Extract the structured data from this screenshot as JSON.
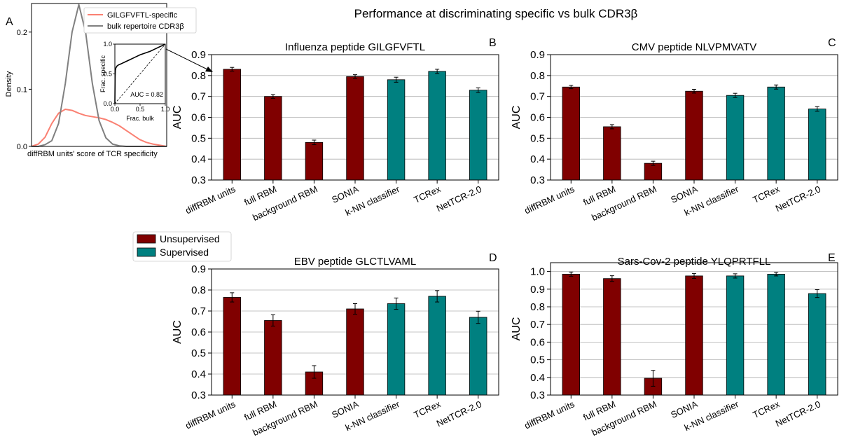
{
  "figure_title": "Performance at discriminating specific vs bulk CDR3β",
  "colors": {
    "unsupervised": "#800000",
    "supervised": "#008080",
    "specific": "#fa8072",
    "bulk": "#808080",
    "grid": "#b0b0b0"
  },
  "main_legend": [
    {
      "label": "Unsupervised",
      "color": "#800000"
    },
    {
      "label": "Supervised",
      "color": "#008080"
    }
  ],
  "chart_data": [
    {
      "panel": "A",
      "type": "line",
      "xlabel": "diffRBM units' score of TCR specificity",
      "ylabel": "Density",
      "ylim": [
        0,
        0.25
      ],
      "y_ticks": [
        "0.0",
        "0.1",
        "0.2"
      ],
      "legend": [
        "GILGFVFTL-specific",
        "bulk repertoire CDR3β"
      ],
      "legend_placement": "top-right",
      "series": [
        {
          "name": "GILGFVFTL-specific",
          "color": "#fa8072",
          "x": [
            0,
            1,
            2,
            3,
            4,
            5,
            6,
            7,
            8,
            9,
            10,
            11,
            12,
            13,
            14,
            15,
            16,
            17,
            18,
            19,
            20
          ],
          "y": [
            0.0,
            0.004,
            0.016,
            0.04,
            0.058,
            0.065,
            0.063,
            0.058,
            0.054,
            0.052,
            0.05,
            0.047,
            0.042,
            0.036,
            0.028,
            0.02,
            0.012,
            0.007,
            0.004,
            0.002,
            0.0
          ]
        },
        {
          "name": "bulk repertoire CDR3β",
          "color": "#808080",
          "x": [
            0,
            1,
            2,
            3,
            4,
            5,
            6,
            7,
            8,
            9,
            10,
            11,
            12,
            13,
            14,
            15,
            16,
            17,
            18,
            19,
            20
          ],
          "y": [
            0.0,
            0.0,
            0.003,
            0.01,
            0.04,
            0.11,
            0.2,
            0.248,
            0.2,
            0.11,
            0.045,
            0.015,
            0.004,
            0.001,
            0.0,
            0.0,
            0.0,
            0.0,
            0.0,
            0.0,
            0.0
          ]
        }
      ],
      "inset": {
        "type": "line",
        "xlabel": "Frac. bulk",
        "ylabel": "Frac. specific",
        "xlim": [
          0,
          1
        ],
        "ylim": [
          0,
          1
        ],
        "ticks": [
          "0.0",
          "0.5",
          "1.0"
        ],
        "annotation": "AUC = 0.82",
        "roc_x": [
          0,
          0.005,
          0.01,
          0.02,
          0.04,
          0.07,
          0.1,
          0.15,
          0.2,
          0.3,
          0.4,
          0.5,
          0.6,
          0.7,
          0.8,
          0.9,
          1.0
        ],
        "roc_y": [
          0,
          0.45,
          0.56,
          0.6,
          0.63,
          0.65,
          0.66,
          0.68,
          0.7,
          0.74,
          0.78,
          0.82,
          0.85,
          0.88,
          0.92,
          0.96,
          1.0
        ]
      }
    },
    {
      "panel": "B",
      "type": "bar",
      "title": "Influenza peptide GILGFVFTL",
      "ylabel": "AUC",
      "ylim": [
        0.3,
        0.9
      ],
      "y_ticks": [
        "0.3",
        "0.4",
        "0.5",
        "0.6",
        "0.7",
        "0.8",
        "0.9"
      ],
      "categories": [
        "diffRBM units",
        "full RBM",
        "background RBM",
        "SONIA",
        "k-NN classifier",
        "TCRex",
        "NetTCR-2.0"
      ],
      "values": [
        0.83,
        0.7,
        0.48,
        0.795,
        0.78,
        0.82,
        0.73
      ],
      "errors": [
        0.009,
        0.009,
        0.011,
        0.009,
        0.012,
        0.01,
        0.011
      ],
      "groups": [
        "unsupervised",
        "unsupervised",
        "unsupervised",
        "unsupervised",
        "supervised",
        "supervised",
        "supervised"
      ]
    },
    {
      "panel": "C",
      "type": "bar",
      "title": "CMV peptide NLVPMVATV",
      "ylabel": "AUC",
      "ylim": [
        0.3,
        0.9
      ],
      "y_ticks": [
        "0.3",
        "0.4",
        "0.5",
        "0.6",
        "0.7",
        "0.8",
        "0.9"
      ],
      "categories": [
        "diffRBM units",
        "full RBM",
        "background RBM",
        "SONIA",
        "k-NN classifier",
        "TCRex",
        "NetTCR-2.0"
      ],
      "values": [
        0.745,
        0.555,
        0.38,
        0.725,
        0.705,
        0.745,
        0.64
      ],
      "errors": [
        0.008,
        0.01,
        0.01,
        0.009,
        0.01,
        0.01,
        0.011
      ],
      "groups": [
        "unsupervised",
        "unsupervised",
        "unsupervised",
        "unsupervised",
        "supervised",
        "supervised",
        "supervised"
      ]
    },
    {
      "panel": "D",
      "type": "bar",
      "title": "EBV peptide GLCTLVAML",
      "ylabel": "AUC",
      "ylim": [
        0.3,
        0.9
      ],
      "y_ticks": [
        "0.3",
        "0.4",
        "0.5",
        "0.6",
        "0.7",
        "0.8",
        "0.9"
      ],
      "categories": [
        "diffRBM units",
        "full RBM",
        "background RBM",
        "SONIA",
        "k-NN classifier",
        "TCRex",
        "NetTCR-2.0"
      ],
      "values": [
        0.765,
        0.655,
        0.41,
        0.71,
        0.735,
        0.77,
        0.67
      ],
      "errors": [
        0.022,
        0.027,
        0.03,
        0.025,
        0.027,
        0.027,
        0.029
      ],
      "groups": [
        "unsupervised",
        "unsupervised",
        "unsupervised",
        "unsupervised",
        "supervised",
        "supervised",
        "supervised"
      ]
    },
    {
      "panel": "E",
      "type": "bar",
      "title": "Sars-Cov-2 peptide YLQPRTFLL",
      "ylabel": "AUC",
      "ylim": [
        0.3,
        1.05
      ],
      "y_ticks": [
        "0.3",
        "0.4",
        "0.5",
        "0.6",
        "0.7",
        "0.8",
        "0.9",
        "1.0"
      ],
      "categories": [
        "diffRBM units",
        "full RBM",
        "background RBM",
        "SONIA",
        "k-NN classifier",
        "TCRex",
        "NetTCR-2.0"
      ],
      "values": [
        0.985,
        0.96,
        0.395,
        0.975,
        0.975,
        0.985,
        0.875
      ],
      "errors": [
        0.012,
        0.016,
        0.045,
        0.014,
        0.012,
        0.01,
        0.022
      ],
      "groups": [
        "unsupervised",
        "unsupervised",
        "unsupervised",
        "unsupervised",
        "supervised",
        "supervised",
        "supervised"
      ]
    }
  ]
}
